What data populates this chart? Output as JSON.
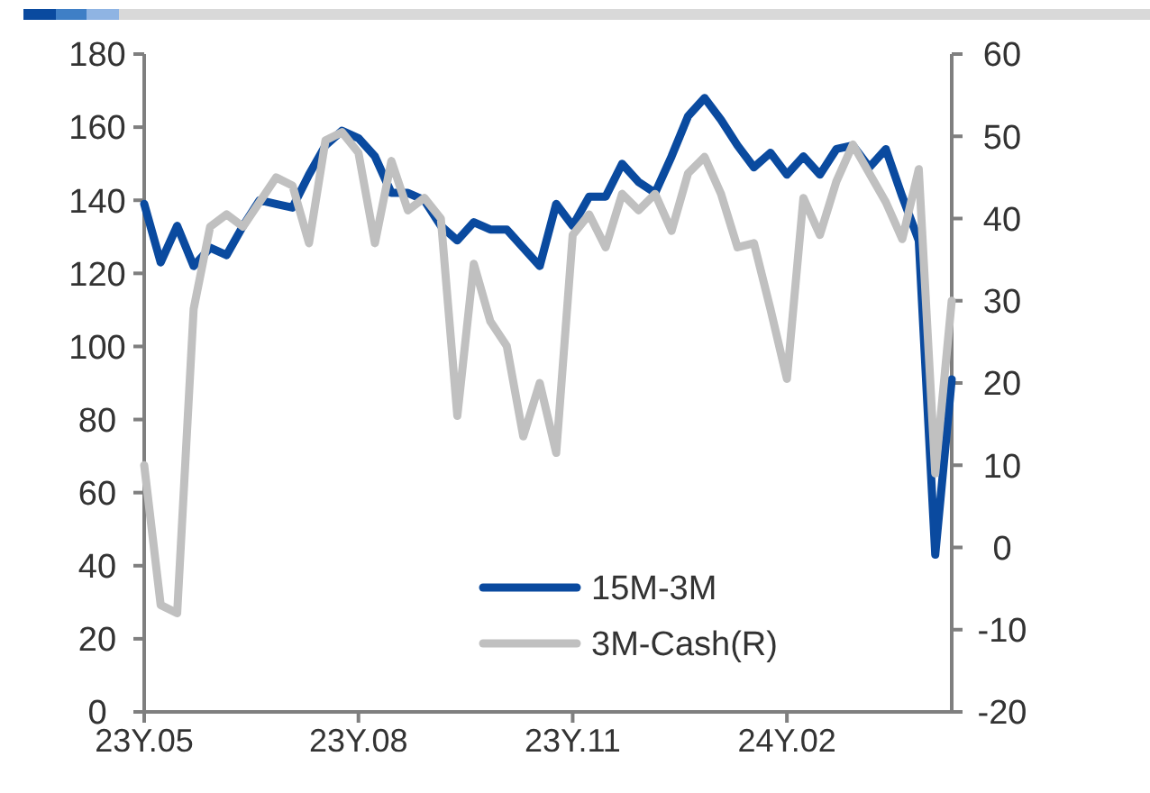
{
  "chart_data": {
    "type": "line",
    "categories": [
      "23Y.05",
      null,
      null,
      null,
      null,
      null,
      null,
      null,
      null,
      null,
      null,
      null,
      null,
      "23Y.08",
      null,
      null,
      null,
      null,
      null,
      null,
      null,
      null,
      null,
      null,
      null,
      null,
      "23Y.11",
      null,
      null,
      null,
      null,
      null,
      null,
      null,
      null,
      null,
      null,
      null,
      null,
      "24Y.02",
      null,
      null,
      null,
      null,
      null,
      null,
      null,
      null,
      null,
      null
    ],
    "ylim": [
      0,
      180
    ],
    "yticks": [
      0,
      20,
      40,
      60,
      80,
      100,
      120,
      140,
      160,
      180
    ],
    "y2lim": [
      -20,
      60
    ],
    "y2ticks": [
      -20,
      -10,
      0,
      10,
      20,
      30,
      40,
      50,
      60
    ],
    "grid": false,
    "legend": "bottom right",
    "marker": "none",
    "line_style": "solid",
    "series": [
      {
        "name": "15M-3M",
        "color": "#0a4a9f",
        "values": [
          139,
          123,
          133,
          122,
          127,
          125,
          133,
          140,
          139,
          138,
          147,
          155,
          159,
          157,
          152,
          142,
          142,
          140,
          133,
          129,
          134,
          132,
          132,
          127,
          122,
          139,
          133,
          141,
          141,
          150,
          145,
          142,
          152,
          163,
          168,
          162,
          155,
          149,
          153,
          147,
          152,
          147,
          154,
          155,
          149,
          154,
          141,
          129,
          43,
          91
        ]
      },
      {
        "name": "3M-Cash(R)",
        "color": "#c0c0c0",
        "axis": "y2",
        "values": [
          10,
          -7,
          -8,
          29,
          39,
          40.5,
          39,
          42,
          45,
          44,
          37,
          49.5,
          50.5,
          48,
          37,
          47,
          41,
          42.5,
          40,
          16,
          34.5,
          27.5,
          24.5,
          13.5,
          20,
          11.5,
          38,
          40.5,
          36.5,
          43,
          41,
          43,
          38.5,
          45.5,
          47.5,
          43,
          36.5,
          37,
          29,
          20.5,
          42.5,
          38,
          44.5,
          49,
          45.5,
          42,
          37.5,
          46,
          9,
          30
        ]
      }
    ]
  }
}
